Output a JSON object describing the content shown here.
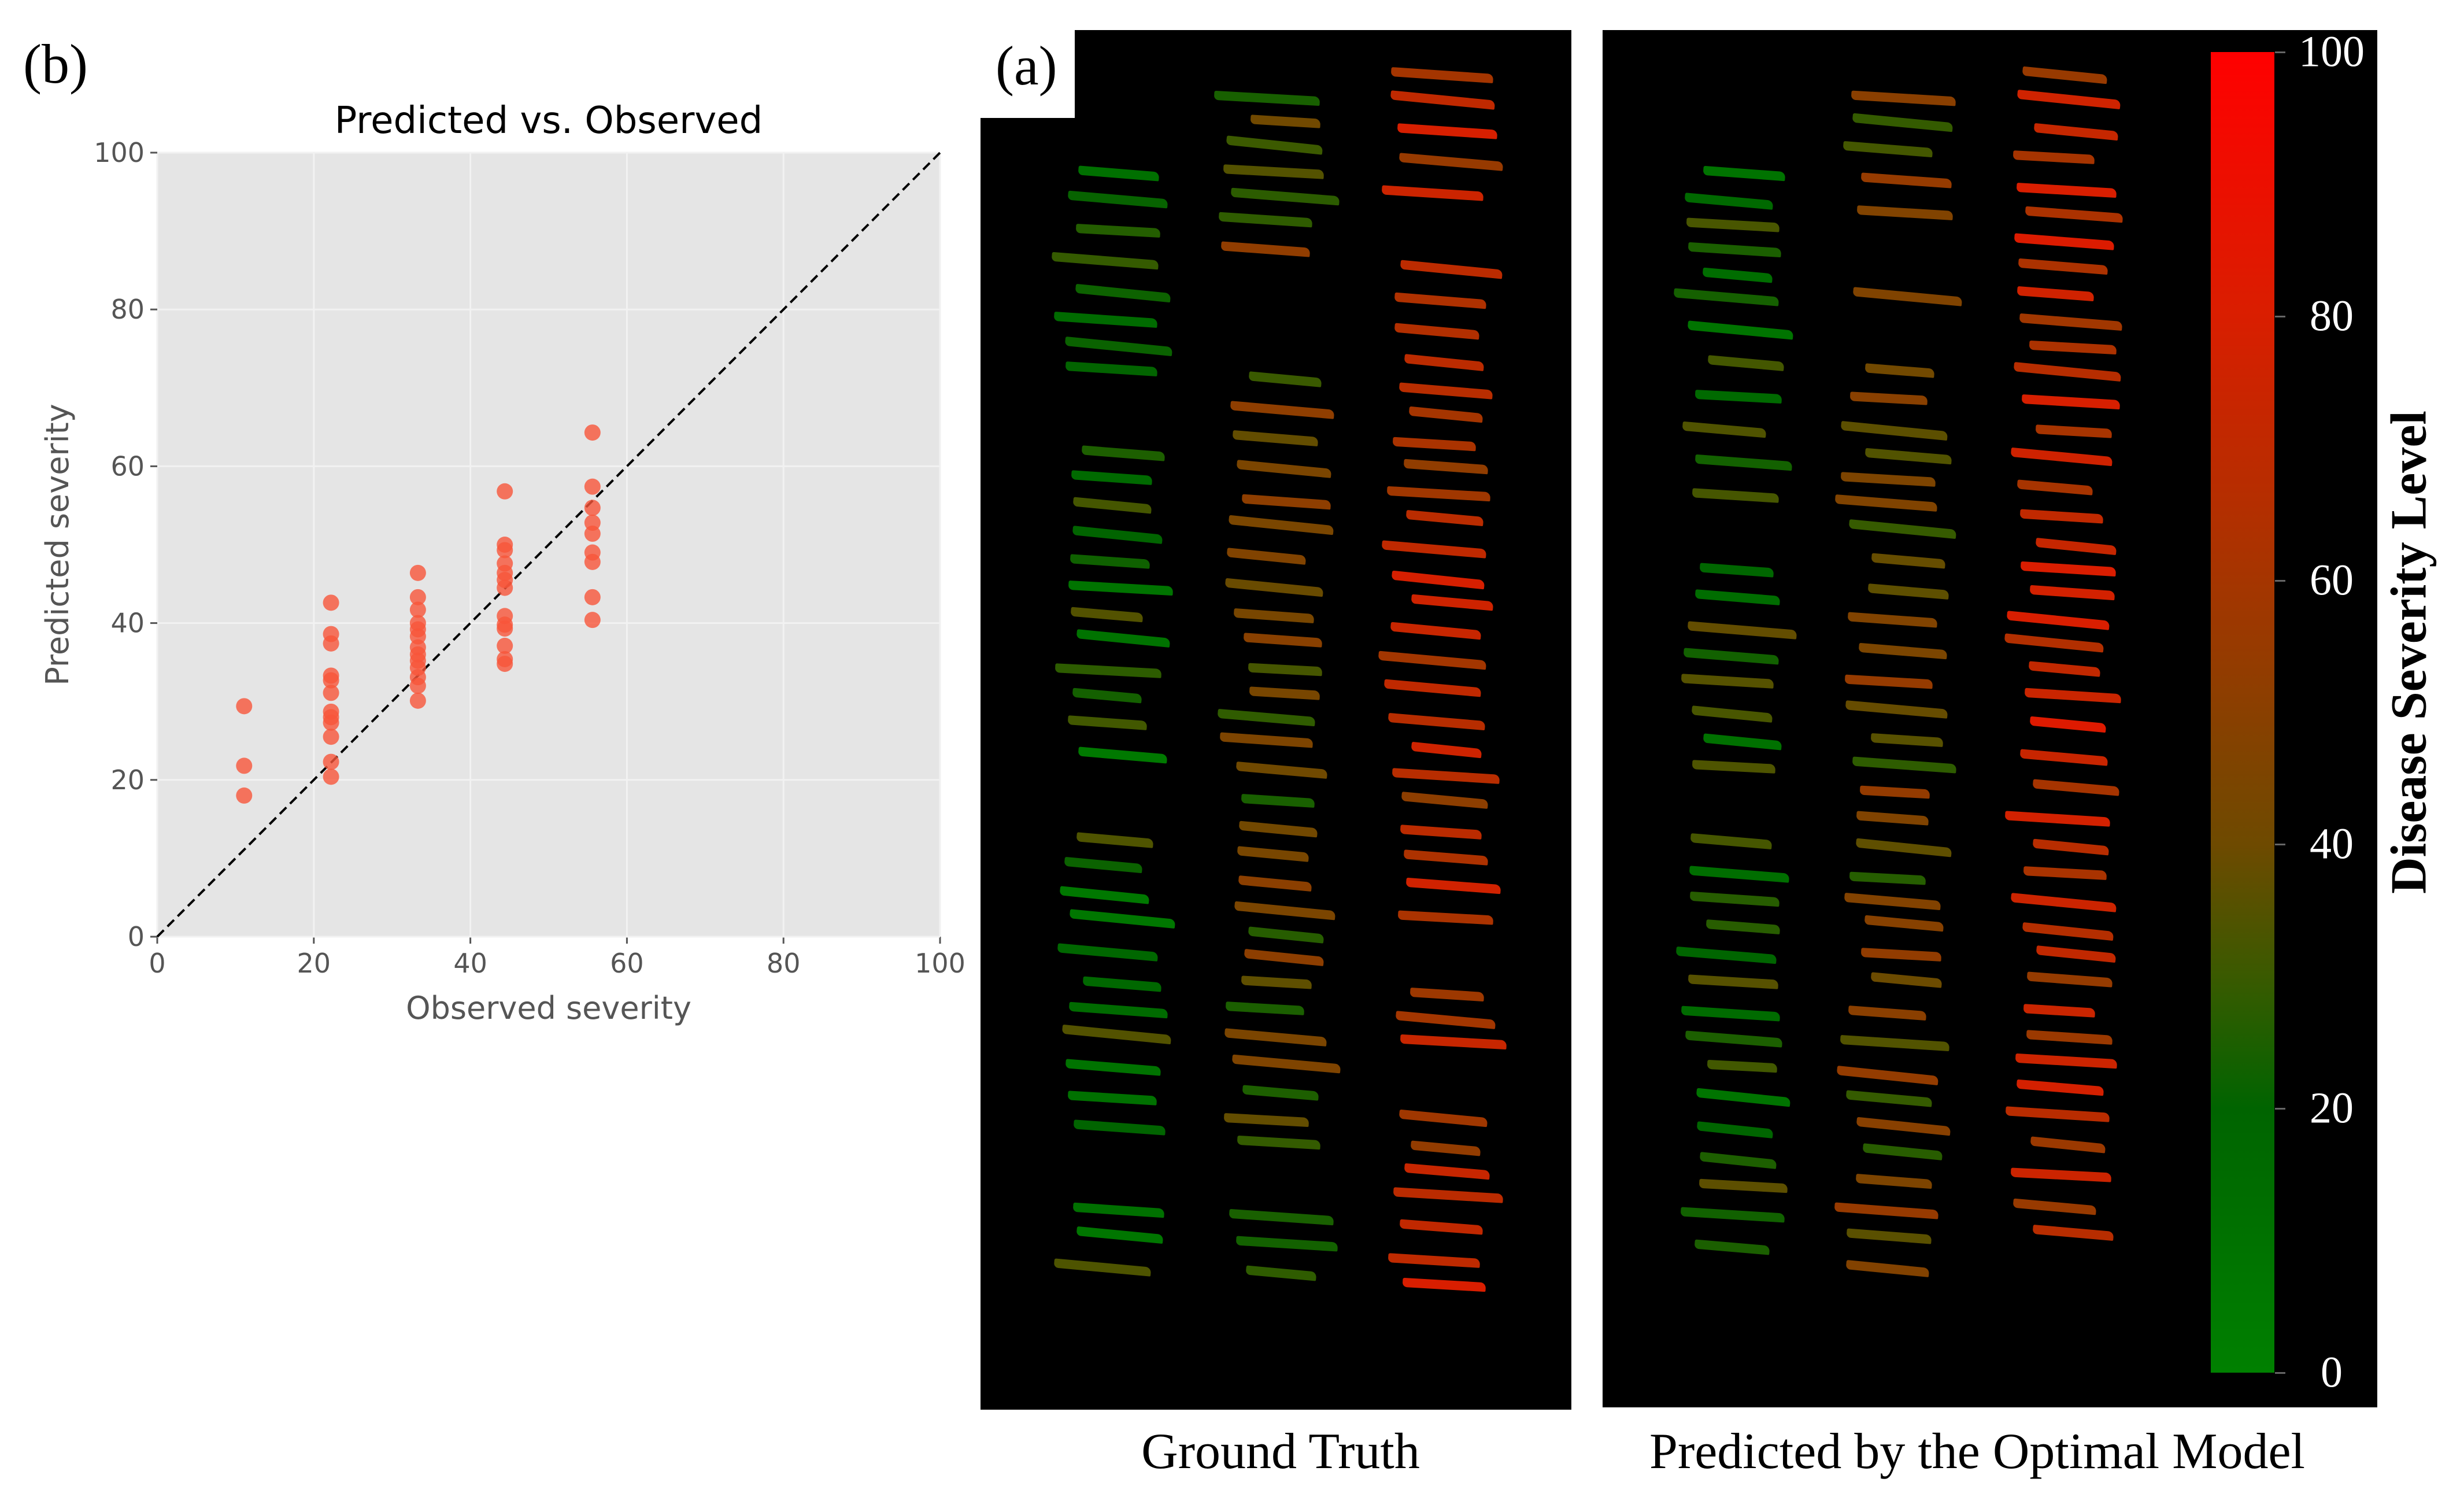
{
  "panel_b_label": "(b)",
  "panel_a_label": "(a)",
  "chart_data": {
    "type": "scatter",
    "title": "Predicted vs. Observed",
    "xlabel": "Observed severity",
    "ylabel": "Predicted severity",
    "xlim": [
      0,
      100
    ],
    "ylim": [
      0,
      100
    ],
    "xticks": [
      "0",
      "20",
      "40",
      "60",
      "80",
      "100"
    ],
    "yticks": [
      "0",
      "20",
      "40",
      "60",
      "80",
      "100"
    ],
    "grid": true,
    "reference_line": "y = x (dashed)",
    "point_color": "#f8553a",
    "points": [
      [
        11.1,
        29.4
      ],
      [
        11.1,
        21.8
      ],
      [
        11.1,
        18.0
      ],
      [
        22.2,
        42.6
      ],
      [
        22.2,
        38.6
      ],
      [
        22.2,
        37.4
      ],
      [
        22.2,
        33.3
      ],
      [
        22.2,
        32.7
      ],
      [
        22.2,
        31.1
      ],
      [
        22.2,
        28.7
      ],
      [
        22.2,
        28.0
      ],
      [
        22.2,
        27.3
      ],
      [
        22.2,
        25.5
      ],
      [
        22.2,
        22.3
      ],
      [
        22.2,
        20.4
      ],
      [
        33.3,
        46.4
      ],
      [
        33.3,
        43.3
      ],
      [
        33.3,
        41.7
      ],
      [
        33.3,
        40.0
      ],
      [
        33.3,
        39.2
      ],
      [
        33.3,
        38.3
      ],
      [
        33.3,
        36.9
      ],
      [
        33.3,
        36.0
      ],
      [
        33.3,
        35.2
      ],
      [
        33.3,
        34.3
      ],
      [
        33.3,
        33.1
      ],
      [
        33.3,
        32.0
      ],
      [
        33.3,
        30.1
      ],
      [
        44.4,
        56.8
      ],
      [
        44.4,
        50.0
      ],
      [
        44.4,
        49.3
      ],
      [
        44.4,
        47.6
      ],
      [
        44.4,
        46.4
      ],
      [
        44.4,
        45.5
      ],
      [
        44.4,
        44.5
      ],
      [
        44.4,
        40.9
      ],
      [
        44.4,
        39.8
      ],
      [
        44.4,
        39.3
      ],
      [
        44.4,
        37.1
      ],
      [
        44.4,
        35.4
      ],
      [
        44.4,
        34.8
      ],
      [
        55.6,
        64.3
      ],
      [
        55.6,
        57.4
      ],
      [
        55.6,
        54.7
      ],
      [
        55.6,
        52.8
      ],
      [
        55.6,
        51.4
      ],
      [
        55.6,
        49.0
      ],
      [
        55.6,
        47.8
      ],
      [
        55.6,
        43.3
      ],
      [
        55.6,
        40.4
      ]
    ]
  },
  "colorbar": {
    "title": "Disease Severity Level",
    "ticks": [
      "0",
      "20",
      "40",
      "60",
      "80",
      "100"
    ],
    "low_color": "#008000",
    "high_color": "#ff0000"
  },
  "captions": {
    "ground_truth": "Ground Truth",
    "predicted": "Predicted by the Optimal Model"
  }
}
